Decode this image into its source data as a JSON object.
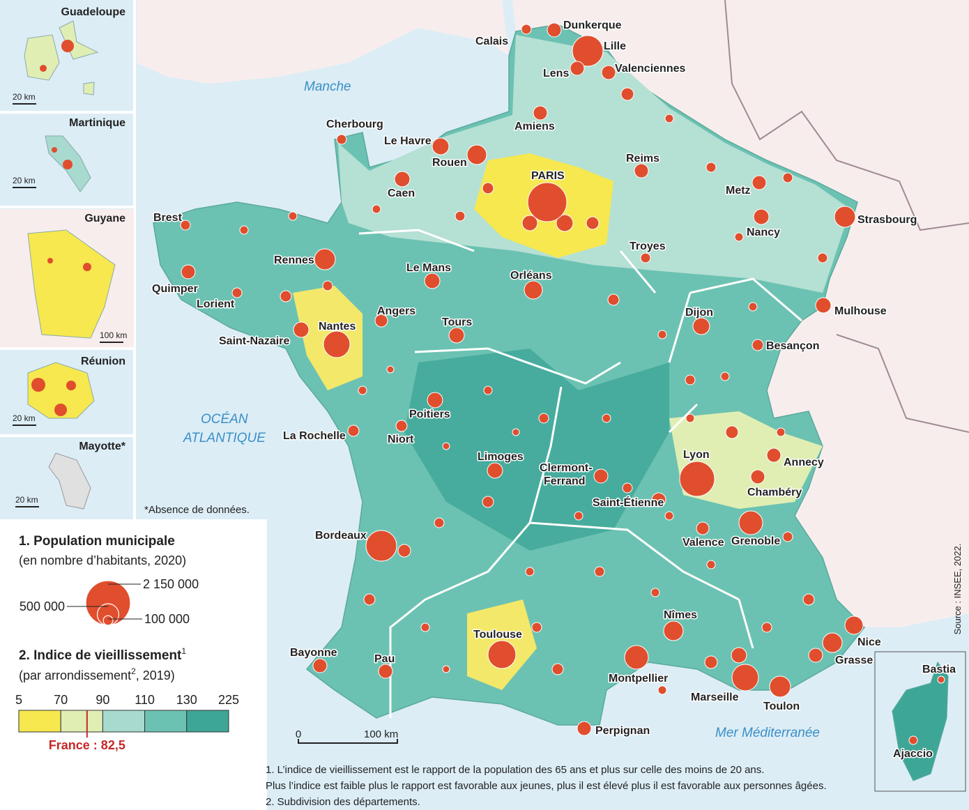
{
  "insets": [
    {
      "name": "Guadeloupe",
      "scale": "20 km"
    },
    {
      "name": "Martinique",
      "scale": "20 km"
    },
    {
      "name": "Guyane",
      "scale": "100 km"
    },
    {
      "name": "Réunion",
      "scale": "20 km"
    },
    {
      "name": "Mayotte*",
      "scale": "20 km"
    }
  ],
  "inset_note": "*Absence de données.",
  "seas": {
    "manche": "Manche",
    "ocean": [
      "OCÉAN",
      "ATLANTIQUE"
    ],
    "mediterranee": "Mer Méditerranée"
  },
  "cities": [
    "Dunkerque",
    "Calais",
    "Lille",
    "Valenciennes",
    "Lens",
    "Cherbourg",
    "Amiens",
    "Le Havre",
    "Rouen",
    "Reims",
    "PARIS",
    "Caen",
    "Metz",
    "Strasbourg",
    "Brest",
    "Nancy",
    "Troyes",
    "Rennes",
    "Le Mans",
    "Orléans",
    "Quimper",
    "Lorient",
    "Mulhouse",
    "Angers",
    "Dijon",
    "Tours",
    "Nantes",
    "Saint-Nazaire",
    "Besançon",
    "Poitiers",
    "La Rochelle",
    "Niort",
    "Lyon",
    "Limoges",
    "Annecy",
    [
      "Clermont-",
      "Ferrand"
    ],
    "Chambéry",
    "Saint-Étienne",
    "Bordeaux",
    "Valence",
    "Grenoble",
    "Nîmes",
    "Nice",
    "Toulouse",
    "Bayonne",
    "Grasse",
    "Pau",
    "Montpellier",
    "Bastia",
    "Marseille",
    "Toulon",
    "Perpignan",
    "Ajaccio"
  ],
  "scale_bar": {
    "start": 0,
    "end": "100 km"
  },
  "legend": {
    "population": {
      "title": "1. Population municipale",
      "subtitle": "(en nombre d’habitants, 2020)",
      "sizes": [
        {
          "value": 2150000,
          "label": "2 150 000"
        },
        {
          "value": 500000,
          "label": "500 000"
        },
        {
          "value": 100000,
          "label": "100 000"
        }
      ],
      "color": "#e04e2e"
    },
    "aging": {
      "title": "2. Indice de vieillissement",
      "title_note": "1",
      "subtitle": [
        "(par arrondissement",
        "2",
        ", 2019)"
      ],
      "ticks": [
        5,
        70,
        90,
        110,
        130,
        225
      ],
      "colors": [
        "#f6e84e",
        "#e0eeb4",
        "#a8dacf",
        "#6cc2b2",
        "#3ea697"
      ],
      "france": {
        "value": 82.5,
        "label": "France : 82,5"
      }
    }
  },
  "footnotes": [
    "1. L’indice de vieillissement est le rapport de la population des 65 ans et plus sur celle des moins de 20 ans.",
    "Plus l’indice est faible plus le rapport est favorable aux jeunes, plus il est élevé plus il est favorable aux personnes âgées.",
    "2. Subdivision des départements."
  ],
  "source": "Source : INSEE, 2022."
}
